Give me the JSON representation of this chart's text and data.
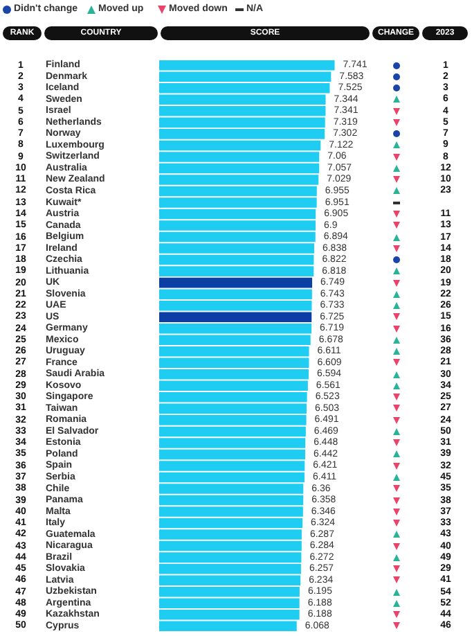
{
  "chart_data": {
    "type": "bar",
    "orientation": "horizontal",
    "xlabel": "SCORE",
    "ylabel": "COUNTRY",
    "annotations": [
      "Didn't change",
      "Moved up",
      "Moved down",
      "N/A",
      "RANK",
      "CHANGE",
      "2023"
    ],
    "categories": [
      "Finland",
      "Denmark",
      "Iceland",
      "Sweden",
      "Israel",
      "Netherlands",
      "Norway",
      "Luxembourg",
      "Switzerland",
      "Australia",
      "New Zealand",
      "Costa Rica",
      "Kuwait*",
      "Austria",
      "Canada",
      "Belgium",
      "Ireland",
      "Czechia",
      "Lithuania",
      "UK",
      "Slovenia",
      "UAE",
      "US",
      "Germany",
      "Mexico",
      "Uruguay",
      "France",
      "Saudi Arabia",
      "Kosovo",
      "Singapore",
      "Taiwan",
      "Romania",
      "El Salvador",
      "Estonia",
      "Poland",
      "Spain",
      "Serbia",
      "Chile",
      "Panama",
      "Malta",
      "Italy",
      "Guatemala",
      "Nicaragua",
      "Brazil",
      "Slovakia",
      "Latvia",
      "Uzbekistan",
      "Argentina",
      "Kazakhstan",
      "Cyprus"
    ],
    "values": [
      7.741,
      7.583,
      7.525,
      7.344,
      7.341,
      7.319,
      7.302,
      7.122,
      7.06,
      7.057,
      7.029,
      6.955,
      6.951,
      6.905,
      6.9,
      6.894,
      6.838,
      6.822,
      6.818,
      6.749,
      6.743,
      6.733,
      6.725,
      6.719,
      6.678,
      6.611,
      6.609,
      6.594,
      6.561,
      6.523,
      6.503,
      6.491,
      6.469,
      6.448,
      6.442,
      6.421,
      6.411,
      6.36,
      6.358,
      6.346,
      6.324,
      6.287,
      6.284,
      6.272,
      6.257,
      6.234,
      6.195,
      6.188,
      6.188,
      6.068
    ],
    "colors": [
      "#1fcdf2",
      "#1fcdf2",
      "#1fcdf2",
      "#1fcdf2",
      "#1fcdf2",
      "#1fcdf2",
      "#1fcdf2",
      "#1fcdf2",
      "#1fcdf2",
      "#1fcdf2",
      "#1fcdf2",
      "#1fcdf2",
      "#1fcdf2",
      "#1fcdf2",
      "#1fcdf2",
      "#1fcdf2",
      "#1fcdf2",
      "#1fcdf2",
      "#1fcdf2",
      "#0b3fa6",
      "#1fcdf2",
      "#1fcdf2",
      "#0b3fa6",
      "#1fcdf2",
      "#1fcdf2",
      "#1fcdf2",
      "#1fcdf2",
      "#1fcdf2",
      "#1fcdf2",
      "#1fcdf2",
      "#1fcdf2",
      "#1fcdf2",
      "#1fcdf2",
      "#1fcdf2",
      "#1fcdf2",
      "#1fcdf2",
      "#1fcdf2",
      "#1fcdf2",
      "#1fcdf2",
      "#1fcdf2",
      "#1fcdf2",
      "#1fcdf2",
      "#1fcdf2",
      "#1fcdf2",
      "#1fcdf2",
      "#1fcdf2",
      "#1fcdf2",
      "#1fcdf2",
      "#1fcdf2",
      "#1fcdf2"
    ],
    "y_categories": [
      "1",
      "2",
      "3",
      "4",
      "5",
      "6",
      "7",
      "8",
      "9",
      "10",
      "11",
      "12",
      "13",
      "14",
      "15",
      "16",
      "17",
      "18",
      "19",
      "20",
      "21",
      "22",
      "23",
      "24",
      "25",
      "26",
      "27",
      "28",
      "29",
      "30",
      "31",
      "32",
      "33",
      "34",
      "35",
      "36",
      "37",
      "38",
      "39",
      "40",
      "41",
      "42",
      "43",
      "44",
      "45",
      "46",
      "47",
      "48",
      "49",
      "50"
    ],
    "y2_categories": [
      "1",
      "2",
      "3",
      "6",
      "4",
      "5",
      "7",
      "9",
      "8",
      "12",
      "10",
      "23",
      null,
      "11",
      "13",
      "17",
      "14",
      "18",
      "20",
      "19",
      "22",
      "26",
      "15",
      "16",
      "36",
      "28",
      "21",
      "30",
      "34",
      "25",
      "27",
      "24",
      "50",
      "31",
      "39",
      "32",
      "45",
      "35",
      "38",
      "37",
      "33",
      "43",
      "40",
      "49",
      "29",
      "41",
      "54",
      "52",
      "44",
      "46"
    ],
    "data_labels": true,
    "tick_labels": "y"
  }
}
